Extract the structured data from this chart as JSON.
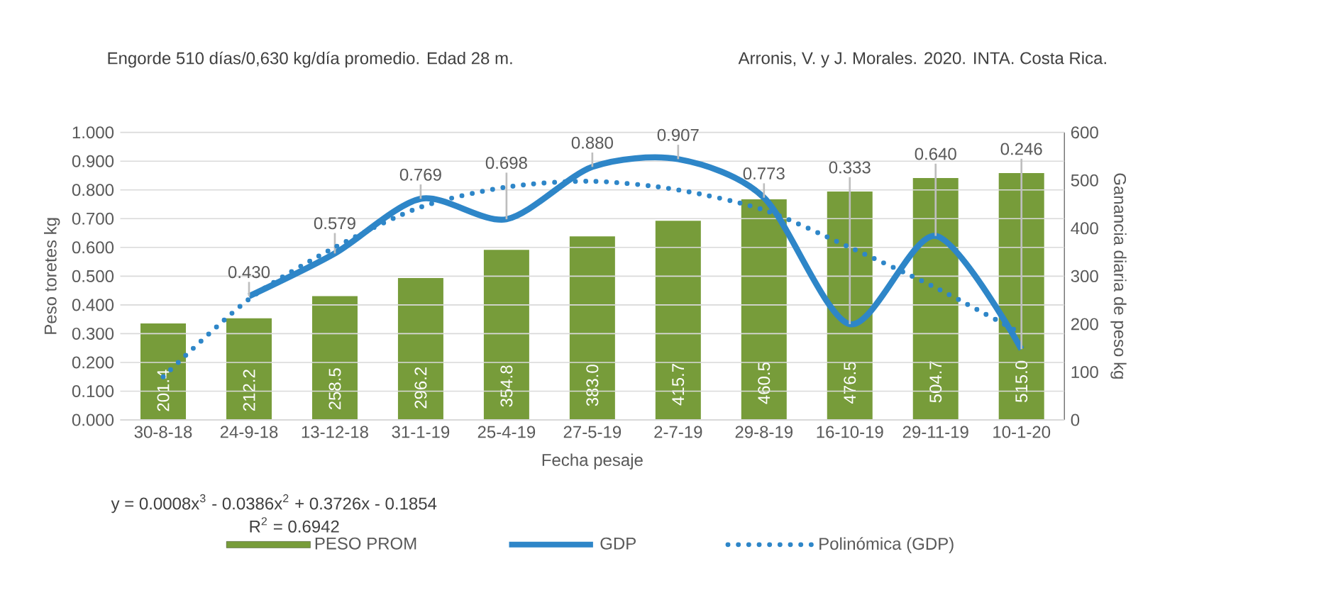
{
  "chart_data": {
    "type": "bar",
    "title": "Engorde 510 días/0,630 kg/día promedio. Edad 28 m.",
    "xlabel": "Fecha pesaje",
    "ylabel": "Peso toretes kg",
    "y2label": "Ganancia diaria de peso kg",
    "annotations": [
      "Arronis, V. y J. Morales. 2020. INTA. Costa Rica.",
      "y = 0.0008x$^{3}$ - 0.0386x$^{2}$ + 0.3726x - 0.1854",
      "R$^{2}$ = 0.6942"
    ],
    "categories": [
      "30-8-18",
      "24-9-18",
      "13-12-18",
      "31-1-19",
      "25-4-19",
      "27-5-19",
      "2-7-19",
      "29-8-19",
      "16-10-19",
      "29-11-19",
      "10-1-20"
    ],
    "series": [
      {
        "name": "PESO PROM",
        "axis": "y2",
        "color": "#779c3a",
        "values": [
          201.4,
          212.2,
          258.5,
          296.2,
          354.8,
          383.0,
          415.7,
          460.5,
          476.5,
          504.7,
          515.0
        ],
        "value_labels": [
          "201.4",
          "212.2",
          "258.5",
          "296.2",
          "354.8",
          "383.0",
          "415.7",
          "460.5",
          "476.5",
          "504.7",
          "515.0"
        ]
      },
      {
        "name": "GDP",
        "type": "line",
        "color": "#2e86c8",
        "line_style": "solid",
        "values": [
          null,
          0.43,
          0.579,
          0.769,
          0.698,
          0.88,
          0.907,
          0.773,
          0.333,
          0.64,
          0.246
        ],
        "value_labels": [
          null,
          "0.430",
          "0.579",
          "0.769",
          "0.698",
          "0.880",
          "0.907",
          "0.773",
          "0.333",
          "0.640",
          "0.246"
        ]
      },
      {
        "name": "Polinómica (GDP)",
        "type": "line",
        "color": "#2e86c8",
        "line_style": "dotted",
        "values": [
          0.15,
          0.42,
          0.6,
          0.74,
          0.81,
          0.83,
          0.8,
          0.73,
          0.6,
          0.46,
          0.3
        ]
      }
    ],
    "ylim": [
      0,
      1
    ],
    "yticks": [
      {
        "value": 0,
        "label": "0.000"
      },
      {
        "value": 0.1,
        "label": "0.100"
      },
      {
        "value": 0.2,
        "label": "0.200"
      },
      {
        "value": 0.3,
        "label": "0.300"
      },
      {
        "value": 0.4,
        "label": "0.400"
      },
      {
        "value": 0.5,
        "label": "0.500"
      },
      {
        "value": 0.6,
        "label": "0.600"
      },
      {
        "value": 0.7,
        "label": "0.700"
      },
      {
        "value": 0.8,
        "label": "0.800"
      },
      {
        "value": 0.9,
        "label": "0.900"
      },
      {
        "value": 1,
        "label": "1.000"
      }
    ],
    "y2lim": [
      0,
      600
    ],
    "y2ticks": [
      0,
      100,
      200,
      300,
      400,
      500,
      600
    ],
    "grid": "y",
    "legend": "bottom"
  }
}
